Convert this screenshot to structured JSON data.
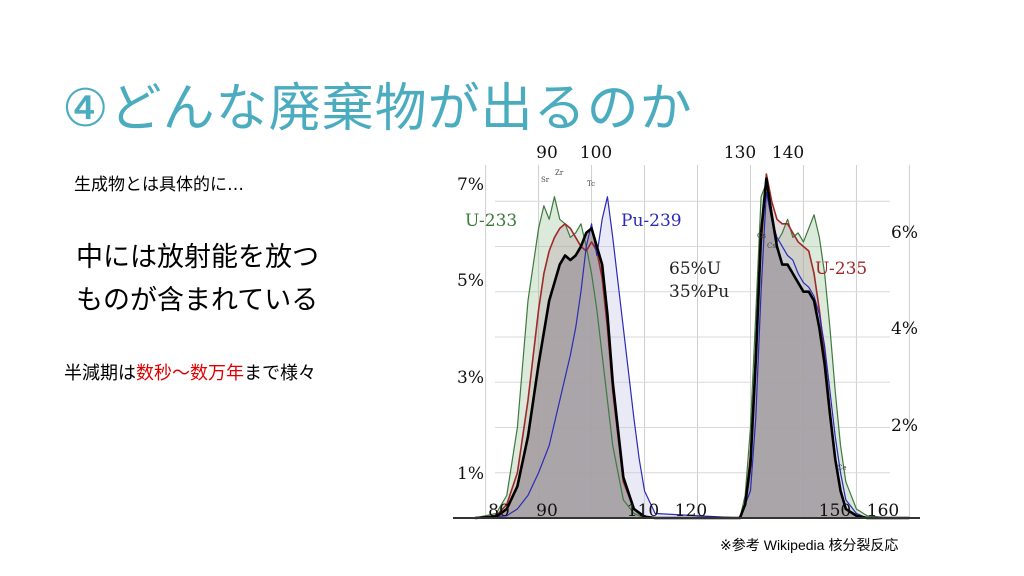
{
  "slide": {
    "title": "④どんな廃棄物が出るのか",
    "subtitle": "生成物とは具体的に…",
    "main_line1": "中には放射能を放つ",
    "main_line2": "ものが含まれている",
    "halflife_prefix": "半減期は",
    "halflife_highlight": "数秒～数万年",
    "halflife_suffix": "まで様々",
    "reference_mark": "※参考",
    "reference_source": "Wikipedia",
    "reference_topic": "核分裂反応"
  },
  "colors": {
    "title": "#4bacc0",
    "highlight": "#e00000",
    "u233": "#3d7a3d",
    "pu239": "#2b2bb5",
    "u235": "#a02828",
    "mix": "#000000",
    "fill": "#a59da2"
  },
  "chart_data": {
    "type": "line",
    "x_ticks_top": [
      "90",
      "100",
      "130",
      "140"
    ],
    "x_ticks_bottom": [
      "80",
      "90",
      "110",
      "120",
      "150",
      "160"
    ],
    "y_ticks_left": [
      "7%",
      "5%",
      "3%",
      "1%"
    ],
    "y_ticks_right": [
      "6%",
      "4%",
      "2%"
    ],
    "series_labels": {
      "u233": "U-233",
      "pu239": "Pu-239",
      "u235": "U-235",
      "mix1": "65%U",
      "mix2": "35%Pu"
    },
    "peak_labels": [
      "Zr",
      "Tc",
      "Cs",
      "Cs",
      "Ce",
      "Sr"
    ],
    "xlim": [
      78,
      162
    ],
    "ylim": [
      0,
      7.8
    ],
    "series": [
      {
        "key": "u233",
        "x": [
          78,
          82,
          84,
          86,
          88,
          90,
          91,
          92,
          93,
          94,
          95,
          96,
          97,
          98,
          99,
          100,
          101,
          102,
          103,
          104,
          106,
          108,
          110,
          112,
          128,
          129,
          130,
          131,
          132,
          133,
          134,
          135,
          136,
          137,
          138,
          139,
          140,
          141,
          142,
          143,
          144,
          145,
          146,
          147,
          148,
          150,
          152,
          156,
          160
        ],
        "y": [
          0,
          0.1,
          0.5,
          2,
          4.8,
          6.4,
          6.9,
          6.6,
          7.1,
          6.6,
          6.5,
          6.2,
          6.3,
          6.5,
          6.0,
          5.4,
          4.6,
          3.6,
          2.6,
          1.6,
          0.4,
          0.1,
          0,
          0,
          0,
          0.5,
          2,
          4.5,
          7.1,
          7.4,
          6.8,
          6.1,
          6.3,
          6.6,
          6.2,
          6.3,
          6.1,
          6.4,
          6.7,
          6.2,
          5.4,
          4.2,
          2.8,
          1.6,
          0.8,
          0.2,
          0.05,
          0,
          0
        ]
      },
      {
        "key": "u235",
        "x": [
          78,
          82,
          84,
          86,
          88,
          90,
          91,
          92,
          93,
          94,
          95,
          96,
          97,
          98,
          99,
          100,
          101,
          102,
          103,
          104,
          106,
          108,
          110,
          112,
          128,
          129,
          130,
          131,
          132,
          133,
          134,
          135,
          136,
          137,
          138,
          139,
          140,
          141,
          142,
          143,
          144,
          145,
          146,
          147,
          148,
          150,
          152,
          156,
          160
        ],
        "y": [
          0,
          0.05,
          0.3,
          1.0,
          2.6,
          4.6,
          5.4,
          5.9,
          6.2,
          6.4,
          6.5,
          6.4,
          6.2,
          6.0,
          5.9,
          6.1,
          5.9,
          5.3,
          4.2,
          2.8,
          0.8,
          0.2,
          0,
          0,
          0,
          0.3,
          1.4,
          3.6,
          6.0,
          7.6,
          7.0,
          6.6,
          6.5,
          6.5,
          6.3,
          6.1,
          6.0,
          5.9,
          5.4,
          4.6,
          3.6,
          2.4,
          1.3,
          0.6,
          0.2,
          0.05,
          0,
          0,
          0
        ]
      },
      {
        "key": "pu239",
        "x": [
          78,
          84,
          86,
          88,
          90,
          92,
          94,
          96,
          97,
          98,
          99,
          100,
          101,
          102,
          103,
          104,
          105,
          106,
          107,
          108,
          109,
          110,
          112,
          128,
          130,
          131,
          132,
          133,
          134,
          135,
          136,
          137,
          138,
          139,
          140,
          141,
          142,
          143,
          144,
          145,
          146,
          147,
          148,
          150,
          152,
          156,
          160
        ],
        "y": [
          0,
          0.05,
          0.2,
          0.5,
          1.0,
          1.6,
          2.6,
          3.6,
          4.2,
          5.0,
          6.0,
          6.5,
          5.8,
          6.6,
          7.1,
          6.2,
          5.2,
          4.2,
          3.2,
          2.2,
          1.3,
          0.6,
          0.1,
          0,
          0.6,
          2.2,
          5.0,
          7.2,
          6.6,
          6.2,
          6.0,
          5.8,
          5.7,
          5.4,
          5.2,
          5.1,
          4.9,
          4.5,
          3.8,
          2.8,
          1.8,
          1.0,
          0.4,
          0.1,
          0,
          0,
          0
        ]
      },
      {
        "key": "mix",
        "x": [
          78,
          82,
          84,
          86,
          88,
          90,
          92,
          94,
          95,
          96,
          97,
          98,
          99,
          100,
          101,
          102,
          103,
          104,
          106,
          108,
          110,
          112,
          128,
          129,
          130,
          131,
          132,
          133,
          134,
          135,
          136,
          137,
          138,
          139,
          140,
          141,
          142,
          143,
          144,
          145,
          146,
          147,
          148,
          150,
          152,
          156,
          160
        ],
        "y": [
          0,
          0.03,
          0.2,
          0.7,
          1.8,
          3.4,
          4.8,
          5.6,
          5.8,
          5.7,
          5.8,
          6.0,
          6.3,
          6.4,
          6.0,
          5.6,
          4.5,
          3.0,
          0.9,
          0.2,
          0.03,
          0,
          0,
          0.3,
          1.2,
          3.5,
          6.3,
          7.5,
          6.7,
          6.0,
          5.6,
          5.6,
          5.4,
          5.2,
          5.0,
          5.0,
          4.8,
          4.2,
          3.4,
          2.3,
          1.3,
          0.6,
          0.2,
          0.05,
          0,
          0,
          0
        ]
      }
    ]
  }
}
